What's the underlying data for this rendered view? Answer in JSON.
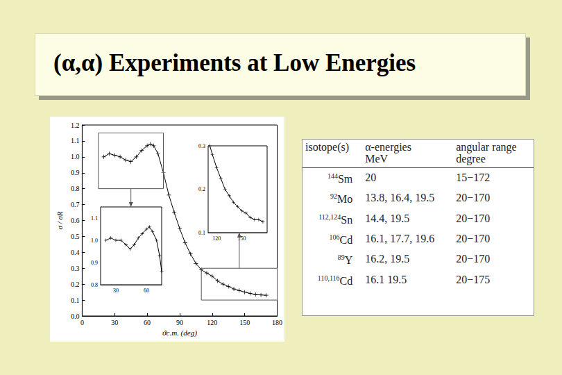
{
  "title": "(α,α) Experiments at Low Energies",
  "chart_data": [
    {
      "type": "line",
      "marker": "plus",
      "line_style": "solid",
      "color": "#000000",
      "grid": false,
      "xlabel": "ϑc.m. (deg)",
      "ylabel": "σ / σR",
      "x": [
        20,
        25,
        30,
        35,
        40,
        45,
        50,
        55,
        60,
        63,
        66,
        70,
        75,
        80,
        85,
        90,
        95,
        100,
        105,
        110,
        115,
        120,
        125,
        130,
        135,
        140,
        145,
        150,
        155,
        160,
        165,
        170
      ],
      "values": [
        1.0,
        1.02,
        1.01,
        1.0,
        0.98,
        0.97,
        1.0,
        1.04,
        1.07,
        1.08,
        1.07,
        1.02,
        0.9,
        0.76,
        0.65,
        0.55,
        0.46,
        0.39,
        0.33,
        0.29,
        0.27,
        0.25,
        0.22,
        0.2,
        0.185,
        0.17,
        0.16,
        0.15,
        0.142,
        0.135,
        0.132,
        0.13
      ],
      "xlim": [
        0,
        180
      ],
      "xticks": [
        0,
        30,
        60,
        90,
        120,
        150,
        180
      ],
      "ylim": [
        0,
        1.2
      ],
      "yticks": [
        {
          "value": 0,
          "label": "0.0"
        },
        0.1,
        0.2,
        0.3,
        0.4,
        0.5,
        0.6,
        0.7,
        0.8,
        0.9,
        {
          "value": 1,
          "label": "1.0"
        },
        1.1,
        1.2
      ]
    },
    {
      "type": "line",
      "marker": "plus",
      "line_style": "solid",
      "color": "#000000",
      "grid": false,
      "x": [
        20,
        25,
        30,
        35,
        40,
        44,
        48,
        52,
        56,
        60,
        63,
        66,
        70,
        73,
        75
      ],
      "values": [
        1.0,
        1.01,
        1.0,
        1.0,
        0.98,
        0.96,
        0.98,
        1.01,
        1.03,
        1.05,
        1.06,
        1.04,
        1.0,
        0.93,
        0.86
      ],
      "xlim": [
        15,
        75
      ],
      "xticks": [
        30,
        60
      ],
      "ylim": [
        0.8,
        1.15
      ],
      "yticks": [
        0.8,
        0.9,
        {
          "value": 1,
          "label": "1.0"
        },
        1.1
      ]
    },
    {
      "type": "line",
      "marker": "plus",
      "line_style": "solid",
      "color": "#000000",
      "grid": false,
      "x": [
        112,
        115,
        120,
        125,
        130,
        135,
        140,
        145,
        150,
        155,
        160,
        165,
        170,
        175
      ],
      "values": [
        0.3,
        0.28,
        0.25,
        0.225,
        0.2,
        0.185,
        0.17,
        0.16,
        0.15,
        0.145,
        0.135,
        0.13,
        0.13,
        0.125
      ],
      "xlim": [
        110,
        180
      ],
      "xticks": [
        120,
        150
      ],
      "ylim": [
        0.1,
        0.3
      ],
      "yticks": [
        0.1,
        0.2,
        0.3
      ]
    }
  ],
  "table": {
    "header": [
      [
        "isotope(s)"
      ],
      [
        "α-energies",
        "MeV"
      ],
      [
        "angular range",
        "degree"
      ]
    ],
    "rows": [
      [
        {
          "mass": "144",
          "element": "Sm"
        },
        "20",
        "15−172"
      ],
      [
        {
          "mass": "92",
          "element": "Mo"
        },
        "13.8, 16.4, 19.5",
        "20−170"
      ],
      [
        {
          "mass": "112,124",
          "element": "Sn"
        },
        "14.4, 19.5",
        "20−170"
      ],
      [
        {
          "mass": "106",
          "element": "Cd"
        },
        "16.1, 17.7, 19.6",
        "20−170"
      ],
      [
        {
          "mass": "89",
          "element": "Y"
        },
        "16.2, 19.5",
        "20−170"
      ],
      [
        {
          "mass": "110,116",
          "element": "Cd"
        },
        "16.1 19.5",
        "20−175"
      ]
    ]
  }
}
